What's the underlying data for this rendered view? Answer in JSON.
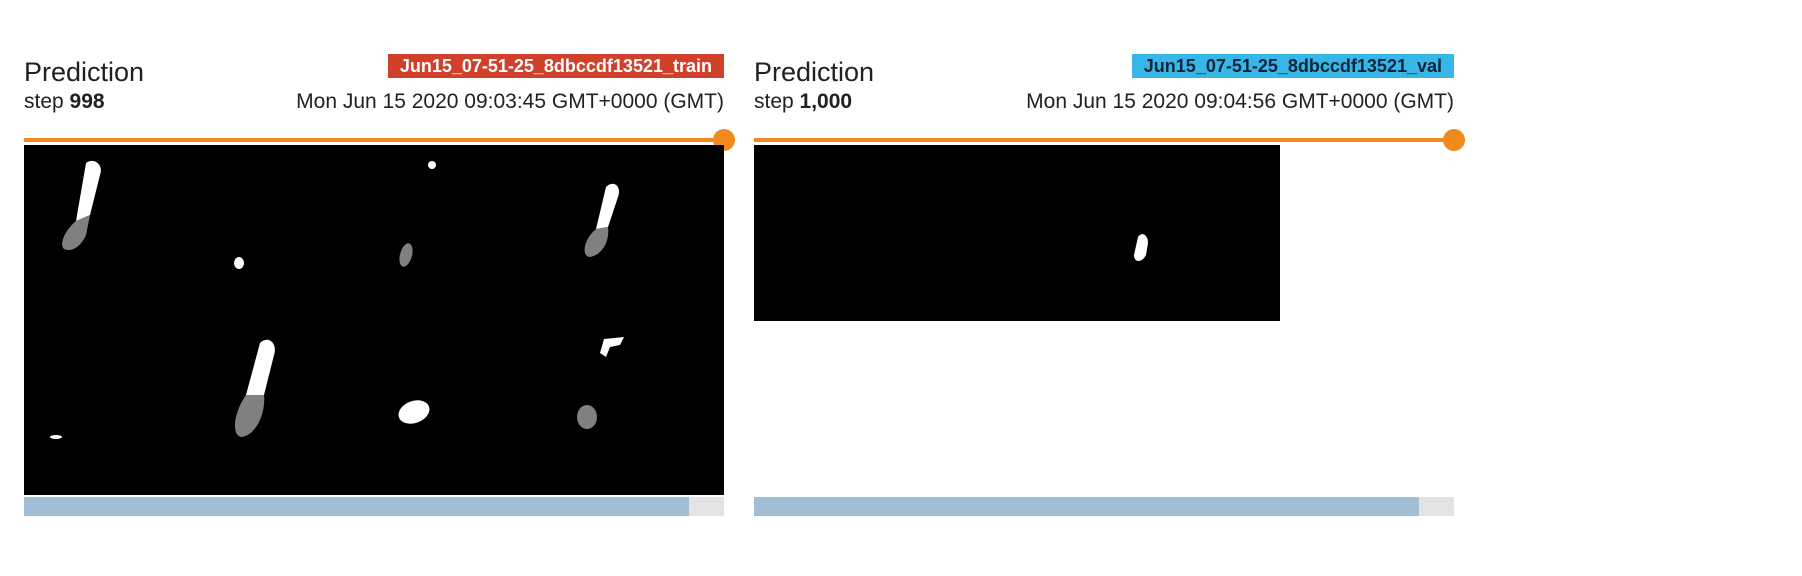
{
  "cards": [
    {
      "title": "Prediction",
      "run_tag": "Jun15_07-51-25_8dbccdf13521_train",
      "run_color": "#d1402b",
      "step_label": "step",
      "step_value": "998",
      "timestamp": "Mon Jun 15 2020 09:03:45 GMT+0000 (GMT)",
      "slider_fraction": 1.0,
      "scroll_fraction": 0.95
    },
    {
      "title": "Prediction",
      "run_tag": "Jun15_07-51-25_8dbccdf13521_val",
      "run_color": "#37b7e8",
      "step_label": "step",
      "step_value": "1,000",
      "timestamp": "Mon Jun 15 2020 09:04:56 GMT+0000 (GMT)",
      "slider_fraction": 1.0,
      "scroll_fraction": 0.95
    }
  ],
  "colors": {
    "slider_accent": "#f08a1c",
    "scroll_thumb": "#a2bdd6",
    "scroll_track": "#e3e3e3",
    "image_background": "#000000",
    "mask_foreground": "#ffffff",
    "mask_secondary": "#808080"
  }
}
